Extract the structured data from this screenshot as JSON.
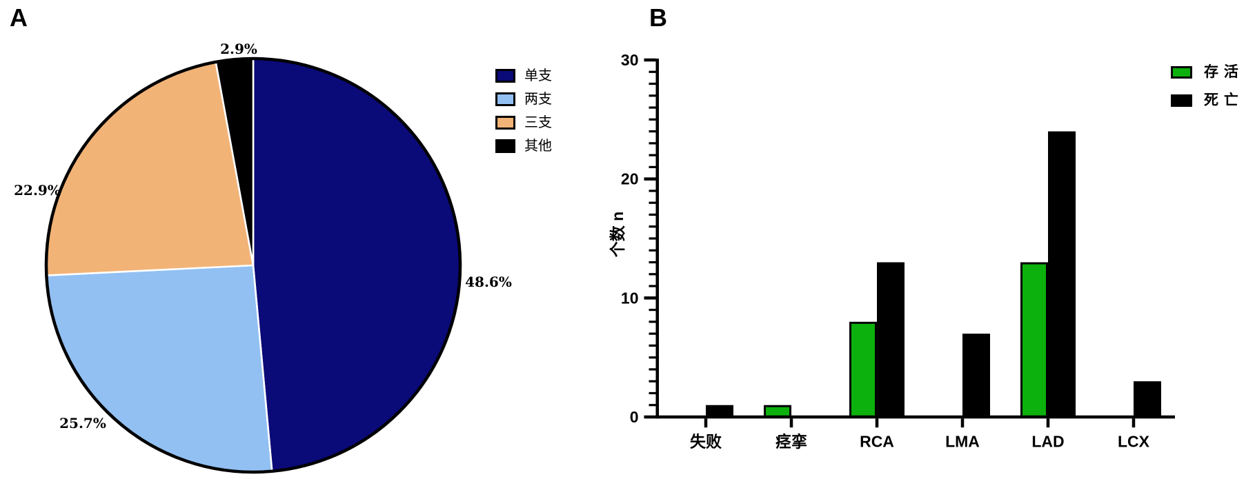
{
  "panels": {
    "a_label": "A",
    "b_label": "B"
  },
  "chart_data": [
    {
      "type": "pie",
      "panel": "A",
      "labels": [
        "单支",
        "两支",
        "三支",
        "其他"
      ],
      "values": [
        48.6,
        25.7,
        22.9,
        2.9
      ],
      "value_labels": [
        "48.6%",
        "25.7%",
        "22.9%",
        "2.9%"
      ],
      "colors": [
        "#0a0a78",
        "#92c0f2",
        "#f2b377",
        "#000000"
      ],
      "start_angle_deg": 0,
      "direction": "clockwise",
      "slice_separator_color": "#ffffff",
      "outline_color": "#000000",
      "legend_position": "right-top"
    },
    {
      "type": "bar",
      "panel": "B",
      "categories": [
        "失败",
        "痉挛",
        "RCA",
        "LMA",
        "LAD",
        "LCX"
      ],
      "series": [
        {
          "name": "存 活",
          "color": "#0db10d",
          "values": [
            0,
            1,
            8,
            0,
            13,
            0
          ]
        },
        {
          "name": "死 亡",
          "color": "#000000",
          "values": [
            1,
            0,
            13,
            7,
            24,
            3
          ]
        }
      ],
      "ylabel": "个数  n",
      "ylim": [
        0,
        30
      ],
      "yticks": [
        0,
        10,
        20,
        30
      ],
      "minor_tick_step": 1,
      "grid": false,
      "legend_position": "top-right"
    }
  ]
}
